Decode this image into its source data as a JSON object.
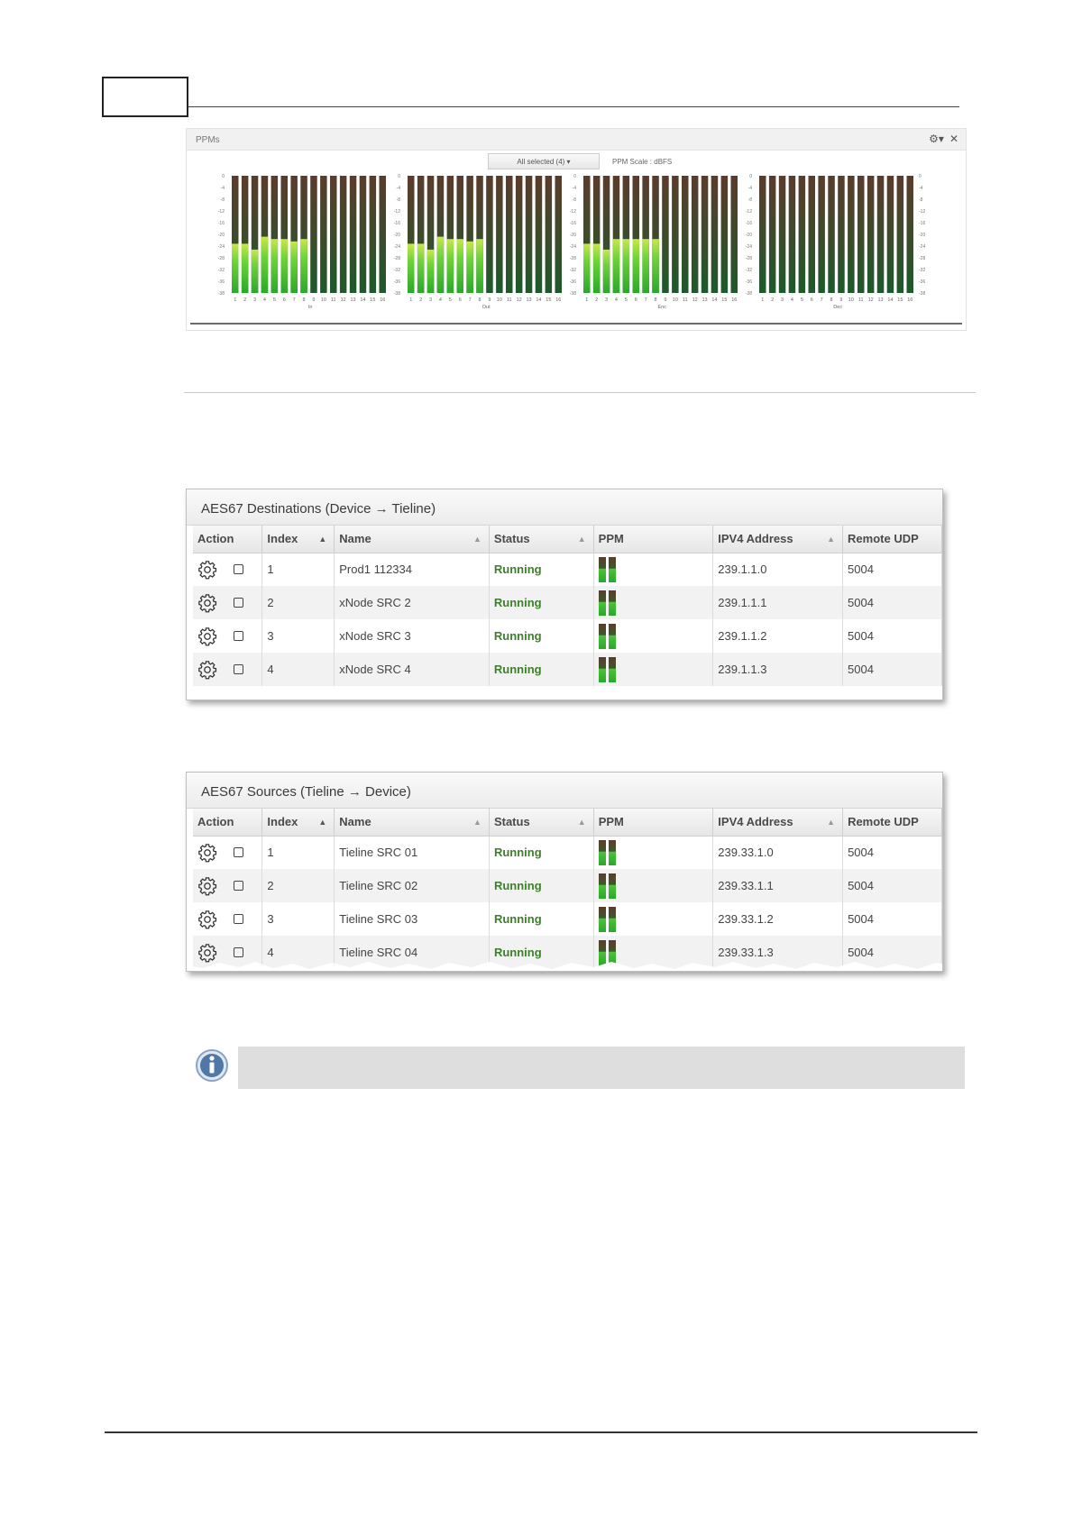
{
  "ppm_panel": {
    "title": "PPMs",
    "select_label": "All selected (4) ▾",
    "scale_label": "PPM Scale : dBFS",
    "settings_icon": "gear-icon",
    "close_icon": "close-icon",
    "scale_ticks": [
      "0",
      "-4",
      "-8",
      "-12",
      "-16",
      "-20",
      "-24",
      "-28",
      "-32",
      "-36",
      "-38"
    ],
    "groups": [
      {
        "name": "In",
        "levels": [
          0.42,
          0.42,
          0.37,
          0.48,
          0.46,
          0.46,
          0.44,
          0.46,
          0,
          0,
          0,
          0,
          0,
          0,
          0,
          0
        ]
      },
      {
        "name": "Out",
        "levels": [
          0.42,
          0.42,
          0.37,
          0.48,
          0.46,
          0.46,
          0.44,
          0.46,
          0,
          0,
          0,
          0,
          0,
          0,
          0,
          0
        ]
      },
      {
        "name": "Enc",
        "levels": [
          0.42,
          0.42,
          0.37,
          0.46,
          0.46,
          0.46,
          0.46,
          0.46,
          0,
          0,
          0,
          0,
          0,
          0,
          0,
          0
        ]
      },
      {
        "name": "Dec",
        "levels": [
          0,
          0,
          0,
          0,
          0,
          0,
          0,
          0,
          0,
          0,
          0,
          0,
          0,
          0,
          0,
          0
        ]
      }
    ],
    "channel_labels": [
      "1",
      "2",
      "3",
      "4",
      "5",
      "6",
      "7",
      "8",
      "9",
      "10",
      "11",
      "12",
      "13",
      "14",
      "15",
      "16"
    ]
  },
  "destinations": {
    "title": "AES67 Destinations (Device → Tieline)",
    "columns": [
      "Action",
      "Index",
      "Name",
      "Status",
      "PPM",
      "IPV4 Address",
      "Remote UDP"
    ],
    "rows": [
      {
        "index": "1",
        "name": "Prod1 112334",
        "status": "Running",
        "ip": "239.1.1.0",
        "udp": "5004"
      },
      {
        "index": "2",
        "name": "xNode SRC 2",
        "status": "Running",
        "ip": "239.1.1.1",
        "udp": "5004"
      },
      {
        "index": "3",
        "name": "xNode SRC 3",
        "status": "Running",
        "ip": "239.1.1.2",
        "udp": "5004"
      },
      {
        "index": "4",
        "name": "xNode SRC 4",
        "status": "Running",
        "ip": "239.1.1.3",
        "udp": "5004"
      }
    ]
  },
  "sources": {
    "title": "AES67 Sources (Tieline → Device)",
    "columns": [
      "Action",
      "Index",
      "Name",
      "Status",
      "PPM",
      "IPV4 Address",
      "Remote UDP"
    ],
    "rows": [
      {
        "index": "1",
        "name": "Tieline SRC 01",
        "status": "Running",
        "ip": "239.33.1.0",
        "udp": "5004"
      },
      {
        "index": "2",
        "name": "Tieline SRC 02",
        "status": "Running",
        "ip": "239.33.1.1",
        "udp": "5004"
      },
      {
        "index": "3",
        "name": "Tieline SRC 03",
        "status": "Running",
        "ip": "239.33.1.2",
        "udp": "5004"
      },
      {
        "index": "4",
        "name": "Tieline SRC 04",
        "status": "Running",
        "ip": "239.33.1.3",
        "udp": "5004"
      }
    ]
  },
  "colors": {
    "running": "#3d7f2a",
    "meter_green": "#39c02a",
    "meter_dark_top": "#5a3a2a",
    "meter_dark_bottom": "#1f5a2a"
  },
  "note": {
    "icon": "info-icon"
  }
}
